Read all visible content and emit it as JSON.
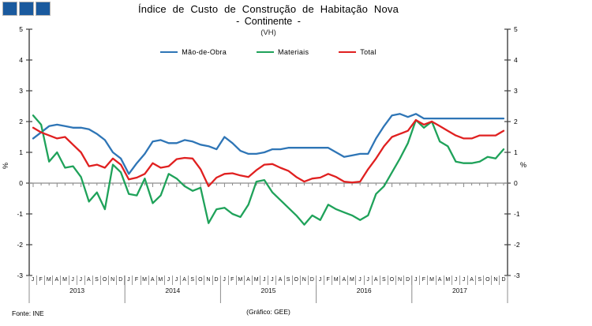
{
  "header": {
    "title_line1": "Índice de Custo de Construção de Habitação Nova",
    "title_line2": "- Continente -",
    "title_line3": "(VH)"
  },
  "decor": {
    "squares_color": "#1a5a9e",
    "squares_count": 3
  },
  "footer": {
    "source": "Fonte:  INE",
    "credit": "(Gráfico:  GEE)"
  },
  "chart_data": {
    "type": "line",
    "title": "Índice de Custo de Construção de Habitação Nova - Continente - (VH)",
    "ylabel_left": "%",
    "ylabel_right": "%",
    "ylim": [
      -3,
      5
    ],
    "yticks": [
      5,
      4,
      3,
      2,
      1,
      0,
      -1,
      -2,
      -3
    ],
    "grid": false,
    "legend_position": "top-center",
    "month_letters": [
      "J",
      "F",
      "M",
      "A",
      "M",
      "J",
      "J",
      "A",
      "S",
      "O",
      "N",
      "D"
    ],
    "years": [
      "2013",
      "2014",
      "2015",
      "2016",
      "2017"
    ],
    "axis_color": "#404040",
    "zero_line_color": "#8c8c8c",
    "separator_color": "#8c8c8c",
    "series": [
      {
        "name": "Mão-de-Obra",
        "color": "#2e75b6",
        "values": [
          1.45,
          1.65,
          1.85,
          1.9,
          1.85,
          1.8,
          1.8,
          1.75,
          1.6,
          1.4,
          1.0,
          0.8,
          0.3,
          0.65,
          0.95,
          1.35,
          1.4,
          1.3,
          1.3,
          1.4,
          1.35,
          1.25,
          1.2,
          1.1,
          1.5,
          1.3,
          1.05,
          0.95,
          0.95,
          1.0,
          1.1,
          1.1,
          1.15,
          1.15,
          1.15,
          1.15,
          1.15,
          1.15,
          1.0,
          0.85,
          0.9,
          0.95,
          0.95,
          1.45,
          1.85,
          2.2,
          2.25,
          2.15,
          2.25,
          2.1,
          2.1,
          2.1,
          2.1,
          2.1,
          2.1,
          2.1,
          2.1,
          2.1,
          2.1,
          2.1
        ]
      },
      {
        "name": "Materiais",
        "color": "#1fa25a",
        "values": [
          2.2,
          1.9,
          0.7,
          1.0,
          0.5,
          0.55,
          0.2,
          -0.6,
          -0.3,
          -0.85,
          0.6,
          0.35,
          -0.35,
          -0.4,
          0.15,
          -0.65,
          -0.4,
          0.3,
          0.15,
          -0.1,
          -0.25,
          -0.15,
          -1.3,
          -0.85,
          -0.8,
          -1.0,
          -1.1,
          -0.7,
          0.05,
          0.1,
          -0.3,
          -0.55,
          -0.8,
          -1.05,
          -1.35,
          -1.05,
          -1.2,
          -0.7,
          -0.85,
          -0.95,
          -1.05,
          -1.2,
          -1.05,
          -0.35,
          -0.1,
          0.35,
          0.8,
          1.3,
          2.05,
          1.8,
          2.0,
          1.35,
          1.2,
          0.7,
          0.65,
          0.65,
          0.7,
          0.85,
          0.8,
          1.1
        ]
      },
      {
        "name": "Total",
        "color": "#e02020",
        "values": [
          1.8,
          1.65,
          1.55,
          1.45,
          1.5,
          1.25,
          1.0,
          0.55,
          0.6,
          0.5,
          0.8,
          0.6,
          0.12,
          0.18,
          0.3,
          0.65,
          0.5,
          0.55,
          0.78,
          0.82,
          0.8,
          0.45,
          -0.1,
          0.18,
          0.3,
          0.32,
          0.25,
          0.2,
          0.42,
          0.6,
          0.62,
          0.5,
          0.4,
          0.2,
          0.05,
          0.15,
          0.18,
          0.3,
          0.2,
          0.05,
          0.02,
          0.05,
          0.45,
          0.8,
          1.2,
          1.5,
          1.6,
          1.7,
          2.05,
          1.9,
          2.0,
          1.85,
          1.7,
          1.55,
          1.45,
          1.45,
          1.55,
          1.55,
          1.55,
          1.7
        ]
      }
    ]
  }
}
